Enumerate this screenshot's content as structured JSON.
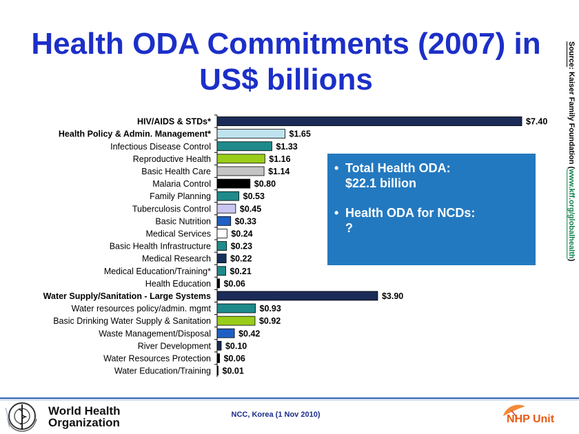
{
  "slide": {
    "title_line1": "Health ODA Commitments (2007) in",
    "title_line2": "US$ billions",
    "source_label": "Source",
    "source_text": ": Kaiser Family Foundation (",
    "source_url": "www.kff.org/globalhealth",
    "source_close": ")"
  },
  "callout": {
    "bullet1_line1": "Total Health ODA:",
    "bullet1_line2": "$22.1 billion",
    "bullet2_line1": "Health ODA for NCDs:",
    "bullet2_line2": "?"
  },
  "footer": {
    "org_line1": "World Health",
    "org_line2": "Organization",
    "center_text": "NCC, Korea (1 Nov 2010)",
    "unit": "NHP Unit"
  },
  "colors": {
    "title": "#1c2fc8",
    "callout_bg": "#2379c0",
    "navy": "#1b2a57",
    "light_blue": "#bfe3ee",
    "teal": "#1f8a8a",
    "lime": "#9acd1a",
    "gray": "#c4c4c4",
    "black": "#000000",
    "lavender": "#c9c6f2",
    "blue": "#1f5fc4",
    "white": "#ffffff",
    "dark_navy": "#14305c",
    "footer_line": "#2a5fb0",
    "nhp": "#e85a12"
  },
  "chart_data": {
    "type": "bar",
    "orientation": "horizontal",
    "title": "Health ODA Commitments (2007) in US$ billions",
    "xlim": [
      0,
      7.4
    ],
    "value_prefix": "$",
    "categories": [
      "HIV/AIDS & STDs*",
      "Health Policy & Admin. Management*",
      "Infectious Disease Control",
      "Reproductive Health",
      "Basic Health Care",
      "Malaria Control",
      "Family Planning",
      "Tuberculosis Control",
      "Basic Nutrition",
      "Medical Services",
      "Basic Health Infrastructure",
      "Medical Research",
      "Medical Education/Training*",
      "Health Education",
      "Water Supply/Sanitation - Large Systems",
      "Water resources policy/admin. mgmt",
      "Basic Drinking Water Supply & Sanitation",
      "Waste Management/Disposal",
      "River Development",
      "Water Resources Protection",
      "Water Education/Training"
    ],
    "values": [
      7.4,
      1.65,
      1.33,
      1.16,
      1.14,
      0.8,
      0.53,
      0.45,
      0.33,
      0.24,
      0.23,
      0.22,
      0.21,
      0.06,
      3.9,
      0.93,
      0.92,
      0.42,
      0.1,
      0.06,
      0.01
    ],
    "value_labels": [
      "$7.40",
      "$1.65",
      "$1.33",
      "$1.16",
      "$1.14",
      "$0.80",
      "$0.53",
      "$0.45",
      "$0.33",
      "$0.24",
      "$0.23",
      "$0.22",
      "$0.21",
      "$0.06",
      "$3.90",
      "$0.93",
      "$0.92",
      "$0.42",
      "$0.10",
      "$0.06",
      "$0.01"
    ],
    "bold_categories": [
      0,
      1,
      14
    ],
    "bar_colors": [
      "navy",
      "light_blue",
      "teal",
      "lime",
      "gray",
      "black",
      "teal",
      "lavender",
      "blue",
      "white",
      "teal",
      "dark_navy",
      "teal",
      "black",
      "navy",
      "teal",
      "lime",
      "blue",
      "navy",
      "black",
      "black"
    ]
  }
}
